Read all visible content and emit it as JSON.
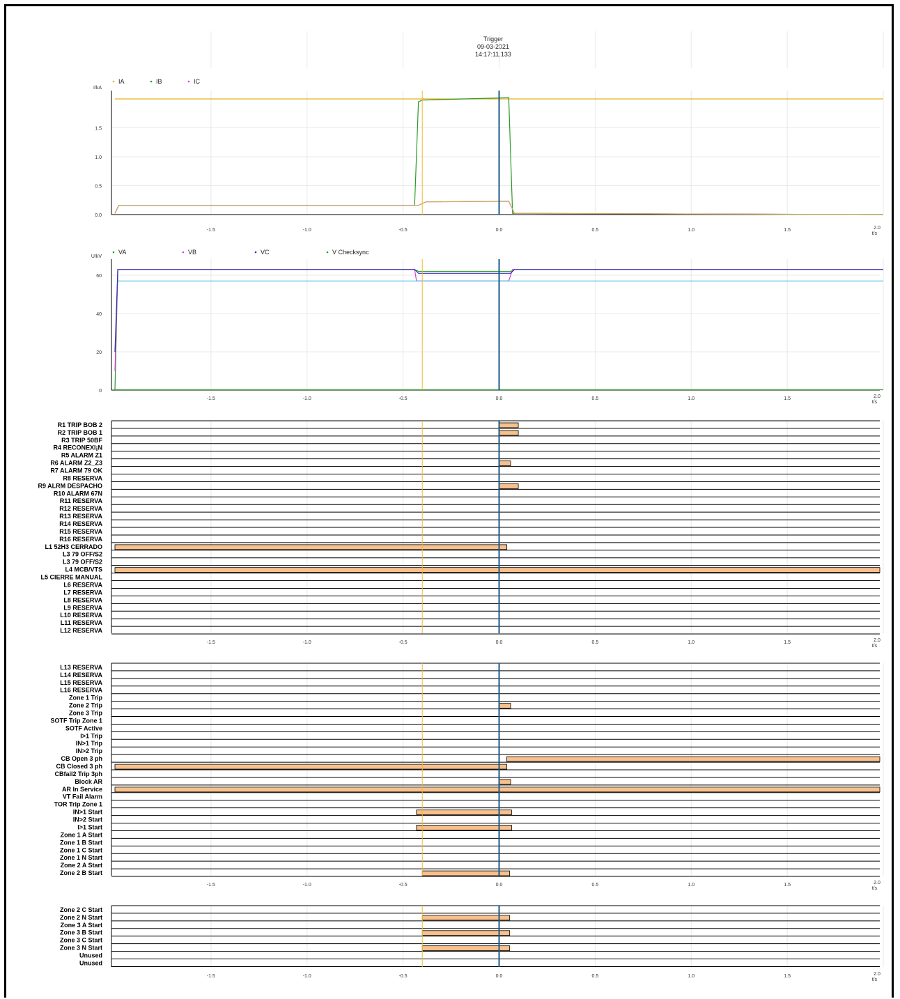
{
  "trigger": {
    "title": "Trigger",
    "date": "09-03-2021",
    "time": "14:17:11.133"
  },
  "colors": {
    "cursor": "#f0b830",
    "trigger": "#1a5a8a",
    "bar": "#f8c08c",
    "bar_border": "#000000",
    "grid": "#e8e8e8"
  },
  "x_axis": {
    "ticks": [
      "-1.5",
      "-1.0",
      "-0.5",
      "0.0",
      "0.5",
      "1.0",
      "1.5",
      "2.0"
    ],
    "unit": "t/s",
    "range": [
      -2.0,
      2.0
    ]
  },
  "chart_data": [
    {
      "type": "line",
      "ylabel": "I/kA",
      "ylim": [
        0,
        2.0
      ],
      "y_ticks": [
        "0.0",
        "0.5",
        "1.0",
        "1.5"
      ],
      "legend_placement": "top-left",
      "series": [
        {
          "name": "IA",
          "color": "#e8b020",
          "points": [
            [
              -2.0,
              2.0
            ],
            [
              2.0,
              2.0
            ]
          ]
        },
        {
          "name": "IB",
          "color": "#2a9a2a",
          "points": [
            [
              -2.0,
              0.02
            ],
            [
              -1.98,
              0.16
            ],
            [
              -0.44,
              0.16
            ],
            [
              -0.42,
              1.95
            ],
            [
              -0.4,
              1.98
            ],
            [
              0.05,
              2.02
            ],
            [
              0.07,
              0.02
            ],
            [
              2.0,
              0.0
            ]
          ]
        },
        {
          "name": "IC",
          "color": "#d040d0",
          "points": [
            [
              -2.0,
              0.02
            ],
            [
              -1.98,
              0.16
            ],
            [
              -0.42,
              0.16
            ],
            [
              -0.38,
              0.22
            ],
            [
              0.05,
              0.23
            ],
            [
              0.08,
              0.02
            ],
            [
              2.0,
              0.0
            ]
          ]
        },
        {
          "name": "",
          "color": "#c8b060",
          "points": [
            [
              -2.0,
              0.02
            ],
            [
              -1.98,
              0.16
            ],
            [
              -0.42,
              0.16
            ],
            [
              -0.38,
              0.22
            ],
            [
              0.05,
              0.23
            ],
            [
              0.08,
              0.02
            ],
            [
              2.0,
              0.0
            ]
          ]
        }
      ]
    },
    {
      "type": "line",
      "ylabel": "U/kV",
      "ylim": [
        0,
        64
      ],
      "y_ticks": [
        "0",
        "20",
        "40",
        "60"
      ],
      "legend_placement": "top-left",
      "series": [
        {
          "name": "VA",
          "color": "#2a9a2a",
          "points": [
            [
              -2.0,
              0
            ],
            [
              -1.985,
              63
            ],
            [
              -0.44,
              63
            ],
            [
              -0.42,
              62
            ],
            [
              0.06,
              62
            ],
            [
              0.08,
              63
            ],
            [
              2.0,
              63
            ]
          ]
        },
        {
          "name": "VB",
          "color": "#d040d0",
          "points": [
            [
              -2.0,
              10
            ],
            [
              -1.985,
              63
            ],
            [
              -0.44,
              63
            ],
            [
              -0.43,
              57
            ],
            [
              0.05,
              57
            ],
            [
              0.07,
              63
            ],
            [
              2.0,
              63
            ]
          ]
        },
        {
          "name": "VC",
          "color": "#3030b0",
          "points": [
            [
              -2.0,
              20
            ],
            [
              -1.985,
              63
            ],
            [
              -0.44,
              63
            ],
            [
              -0.42,
              61
            ],
            [
              0.06,
              61
            ],
            [
              0.08,
              63
            ],
            [
              2.0,
              63
            ]
          ]
        },
        {
          "name": "V Checksync",
          "color": "#2a9a2a",
          "points": [
            [
              -2.0,
              0.2
            ],
            [
              2.0,
              0.2
            ]
          ]
        },
        {
          "name": "",
          "color": "#40c0e0",
          "points": [
            [
              -1.985,
              57
            ],
            [
              2.0,
              57
            ]
          ]
        }
      ]
    },
    {
      "type": "table",
      "rows": [
        {
          "label": "R1 TRIP BOB 2",
          "bars": [
            [
              0.0,
              0.1
            ]
          ]
        },
        {
          "label": "R2 TRIP BOB 1",
          "bars": [
            [
              0.0,
              0.1
            ]
          ]
        },
        {
          "label": "R3 TRIP 50BF",
          "bars": []
        },
        {
          "label": "R4 RECONEXI¡N",
          "bars": []
        },
        {
          "label": "R5 ALARM Z1",
          "bars": []
        },
        {
          "label": "R6 ALARM Z2_Z3",
          "bars": [
            [
              0.0,
              0.06
            ]
          ]
        },
        {
          "label": "R7 ALARM 79 OK",
          "bars": []
        },
        {
          "label": "R8 RESERVA",
          "bars": []
        },
        {
          "label": "R9 ALRM DESPACHO",
          "bars": [
            [
              0.0,
              0.1
            ]
          ]
        },
        {
          "label": "R10 ALARM 67N",
          "bars": []
        },
        {
          "label": "R11 RESERVA",
          "bars": []
        },
        {
          "label": "R12 RESERVA",
          "bars": []
        },
        {
          "label": "R13 RESERVA",
          "bars": []
        },
        {
          "label": "R14 RESERVA",
          "bars": []
        },
        {
          "label": "R15 RESERVA",
          "bars": []
        },
        {
          "label": "R16 RESERVA",
          "bars": []
        },
        {
          "label": "L1 52H3 CERRADO",
          "bars": [
            [
              -2.0,
              0.04
            ]
          ]
        },
        {
          "label": "L3 79 OFF/S2",
          "bars": []
        },
        {
          "label": "L3 79 OFF/S2",
          "bars": []
        },
        {
          "label": "L4 MCB/VTS",
          "bars": [
            [
              -2.0,
              2.02
            ]
          ]
        },
        {
          "label": "L5 CIERRE MANUAL",
          "bars": []
        },
        {
          "label": "L6 RESERVA",
          "bars": []
        },
        {
          "label": "L7 RESERVA",
          "bars": []
        },
        {
          "label": "L8 RESERVA",
          "bars": []
        },
        {
          "label": "L9 RESERVA",
          "bars": []
        },
        {
          "label": "L10 RESERVA",
          "bars": []
        },
        {
          "label": "L11 RESERVA",
          "bars": []
        },
        {
          "label": "L12 RESERVA",
          "bars": []
        }
      ]
    },
    {
      "type": "table",
      "rows": [
        {
          "label": "L13 RESERVA",
          "bars": []
        },
        {
          "label": "L14 RESERVA",
          "bars": []
        },
        {
          "label": "L15 RESERVA",
          "bars": []
        },
        {
          "label": "L16 RESERVA",
          "bars": []
        },
        {
          "label": "Zone 1 Trip",
          "bars": []
        },
        {
          "label": "Zone 2 Trip",
          "bars": [
            [
              0.0,
              0.06
            ]
          ]
        },
        {
          "label": "Zone 3 Trip",
          "bars": []
        },
        {
          "label": "SOTF Trip Zone 1",
          "bars": []
        },
        {
          "label": "SOTF Active",
          "bars": []
        },
        {
          "label": "I>1 Trip",
          "bars": []
        },
        {
          "label": "IN>1 Trip",
          "bars": []
        },
        {
          "label": "IN>2 Trip",
          "bars": []
        },
        {
          "label": "CB Open 3 ph",
          "bars": [
            [
              0.04,
              2.02
            ]
          ]
        },
        {
          "label": "CB Closed 3 ph",
          "bars": [
            [
              -2.0,
              0.04
            ]
          ]
        },
        {
          "label": "CBfail2 Trip 3ph",
          "bars": []
        },
        {
          "label": "Block AR",
          "bars": [
            [
              0.0,
              0.06
            ]
          ]
        },
        {
          "label": "AR In Service",
          "bars": [
            [
              -2.0,
              2.02
            ]
          ]
        },
        {
          "label": "VT Fail Alarm",
          "bars": []
        },
        {
          "label": "TOR Trip Zone 1",
          "bars": []
        },
        {
          "label": "IN>1 Start",
          "bars": [
            [
              -0.43,
              0.065
            ]
          ]
        },
        {
          "label": "IN>2 Start",
          "bars": []
        },
        {
          "label": "I>1 Start",
          "bars": [
            [
              -0.43,
              0.065
            ]
          ]
        },
        {
          "label": "Zone 1 A Start",
          "bars": []
        },
        {
          "label": "Zone 1 B Start",
          "bars": []
        },
        {
          "label": "Zone 1 C Start",
          "bars": []
        },
        {
          "label": "Zone 1 N Start",
          "bars": []
        },
        {
          "label": "Zone 2 A Start",
          "bars": []
        },
        {
          "label": "Zone 2 B Start",
          "bars": [
            [
              -0.4,
              0.055
            ]
          ]
        }
      ]
    },
    {
      "type": "table",
      "rows": [
        {
          "label": "Zone 2 C Start",
          "bars": []
        },
        {
          "label": "Zone 2 N Start",
          "bars": [
            [
              -0.4,
              0.055
            ]
          ]
        },
        {
          "label": "Zone 3 A Start",
          "bars": []
        },
        {
          "label": "Zone 3 B Start",
          "bars": [
            [
              -0.4,
              0.055
            ]
          ]
        },
        {
          "label": "Zone 3 C Start",
          "bars": []
        },
        {
          "label": "Zone 3 N Start",
          "bars": [
            [
              -0.4,
              0.055
            ]
          ]
        },
        {
          "label": "Unused",
          "bars": []
        },
        {
          "label": "Unused",
          "bars": []
        }
      ]
    }
  ],
  "cursor_t": -0.4,
  "trigger_t": 0.0
}
